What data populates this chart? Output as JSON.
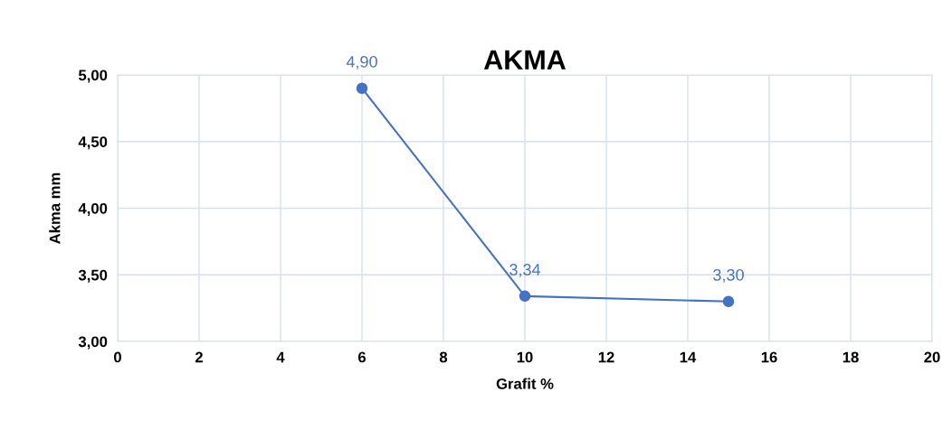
{
  "chart_data": {
    "type": "line",
    "title": "AKMA",
    "xlabel": "Grafit %",
    "ylabel": "Akma mm",
    "x": [
      6,
      10,
      15
    ],
    "series": [
      {
        "color": "#4472c4",
        "values": [
          4.9,
          3.34,
          3.3
        ],
        "value_labels": [
          "4,90",
          "3,34",
          "3,30"
        ]
      }
    ],
    "xlim": [
      0,
      20
    ],
    "xticks": [
      0,
      2,
      4,
      6,
      8,
      10,
      12,
      14,
      16,
      18,
      20
    ],
    "ylim": [
      3,
      5
    ],
    "yticks": [
      {
        "value": 3,
        "label": "3,00"
      },
      {
        "value": 3.5,
        "label": "3,50"
      },
      {
        "value": 4,
        "label": "4,00"
      },
      {
        "value": 4.5,
        "label": "4,50"
      },
      {
        "value": 5,
        "label": "5,00"
      }
    ],
    "grid": true,
    "marker": "circle",
    "line_style": "solid"
  }
}
